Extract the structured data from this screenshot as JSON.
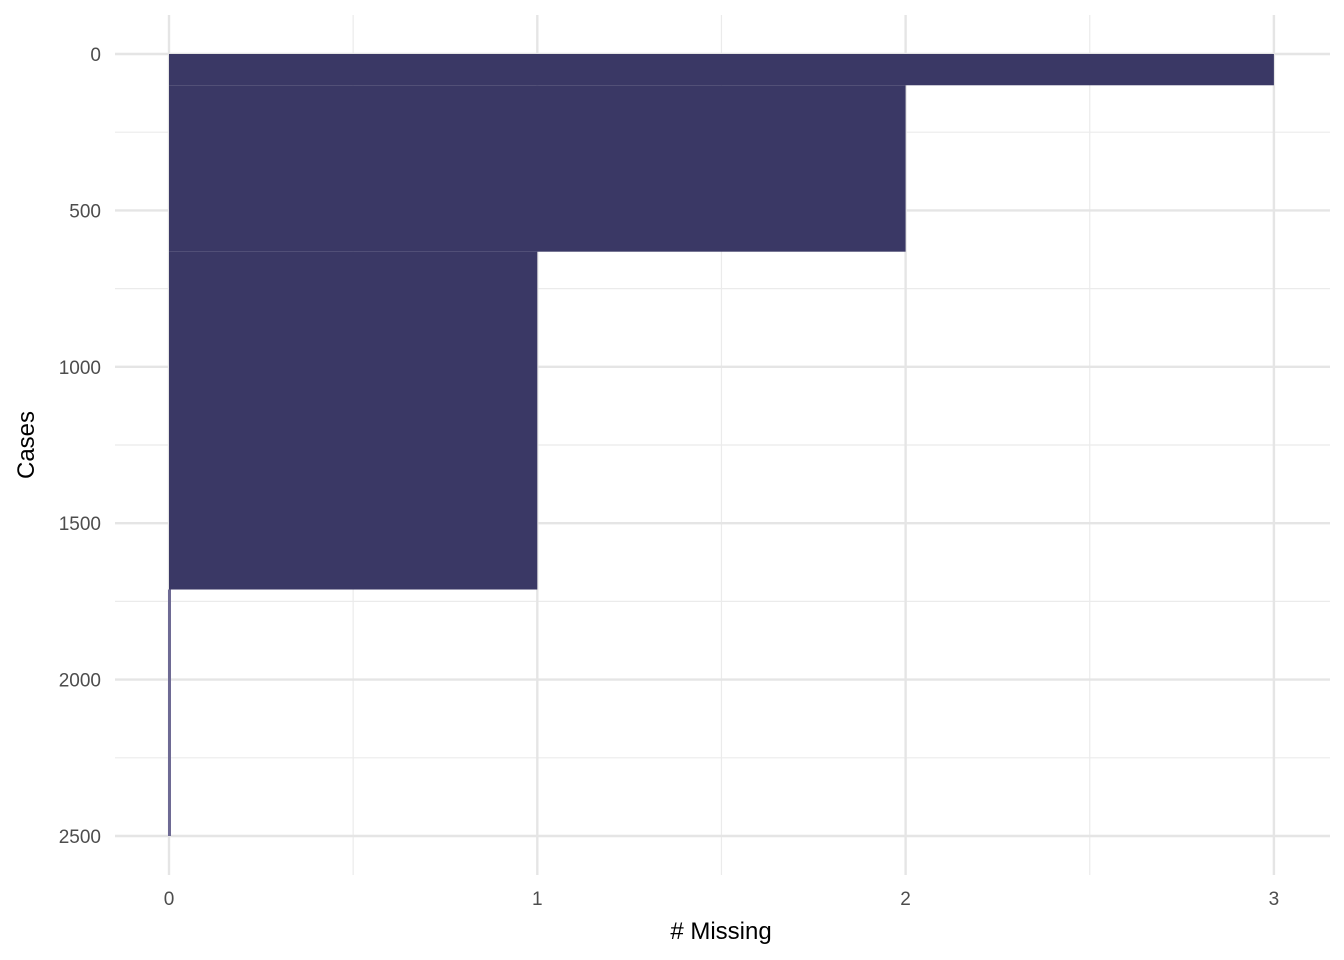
{
  "chart_data": {
    "type": "bar",
    "orientation": "horizontal",
    "xlabel": "# Missing",
    "ylabel": "Cases",
    "xlim": [
      0,
      3
    ],
    "ylim": [
      2500,
      0
    ],
    "y_reversed": true,
    "x_ticks": [
      "0",
      "1",
      "2",
      "3"
    ],
    "y_ticks": [
      "0",
      "500",
      "1000",
      "1500",
      "2000",
      "2500"
    ],
    "grid": true,
    "bar_color": "#3a3865",
    "zero_line_color": "#6e6a94",
    "segments": [
      {
        "cases_from": 0,
        "cases_to": 100,
        "n_miss": 3
      },
      {
        "cases_from": 100,
        "cases_to": 632,
        "n_miss": 2
      },
      {
        "cases_from": 632,
        "cases_to": 1712,
        "n_miss": 1
      },
      {
        "cases_from": 1712,
        "cases_to": 2500,
        "n_miss": 0
      }
    ]
  }
}
